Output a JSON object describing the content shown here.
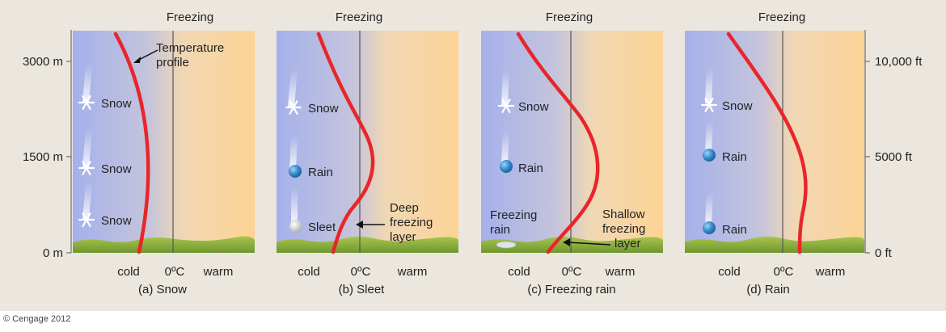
{
  "left_axis": {
    "label_top": "3000 m",
    "label_mid": "1500 m",
    "label_bottom": "0 m"
  },
  "right_axis": {
    "label_top": "10,000 ft",
    "label_mid": "5000 ft",
    "label_bottom": "0 ft"
  },
  "credit": "© Cengage 2012",
  "panels": [
    {
      "header": "Freezing",
      "cold": "cold",
      "zero": "0ºC",
      "warm": "warm",
      "caption": "(a) Snow",
      "labels": [
        "Snow",
        "Snow",
        "Snow"
      ],
      "annotation": [
        "Temperature",
        "profile"
      ]
    },
    {
      "header": "Freezing",
      "cold": "cold",
      "zero": "0ºC",
      "warm": "warm",
      "caption": "(b) Sleet",
      "labels": [
        "Snow",
        "Rain",
        "Sleet"
      ],
      "annotation": [
        "Deep",
        "freezing",
        "layer"
      ]
    },
    {
      "header": "Freezing",
      "cold": "cold",
      "zero": "0ºC",
      "warm": "warm",
      "caption": "(c) Freezing rain",
      "labels": [
        "Snow",
        "Rain",
        "Freezing",
        "rain"
      ],
      "annotation": [
        "Shallow",
        "freezing",
        "layer"
      ]
    },
    {
      "header": "Freezing",
      "cold": "cold",
      "zero": "0ºC",
      "warm": "warm",
      "caption": "(d) Rain",
      "labels": [
        "Snow",
        "Rain",
        "Rain"
      ],
      "annotation": []
    }
  ],
  "colors": {
    "profile": "#e8262a",
    "cold_bg": "#a7b3e8",
    "warm_bg": "#fcd89a",
    "ground": "#8fb43c",
    "backdrop": "#ebe7de"
  }
}
